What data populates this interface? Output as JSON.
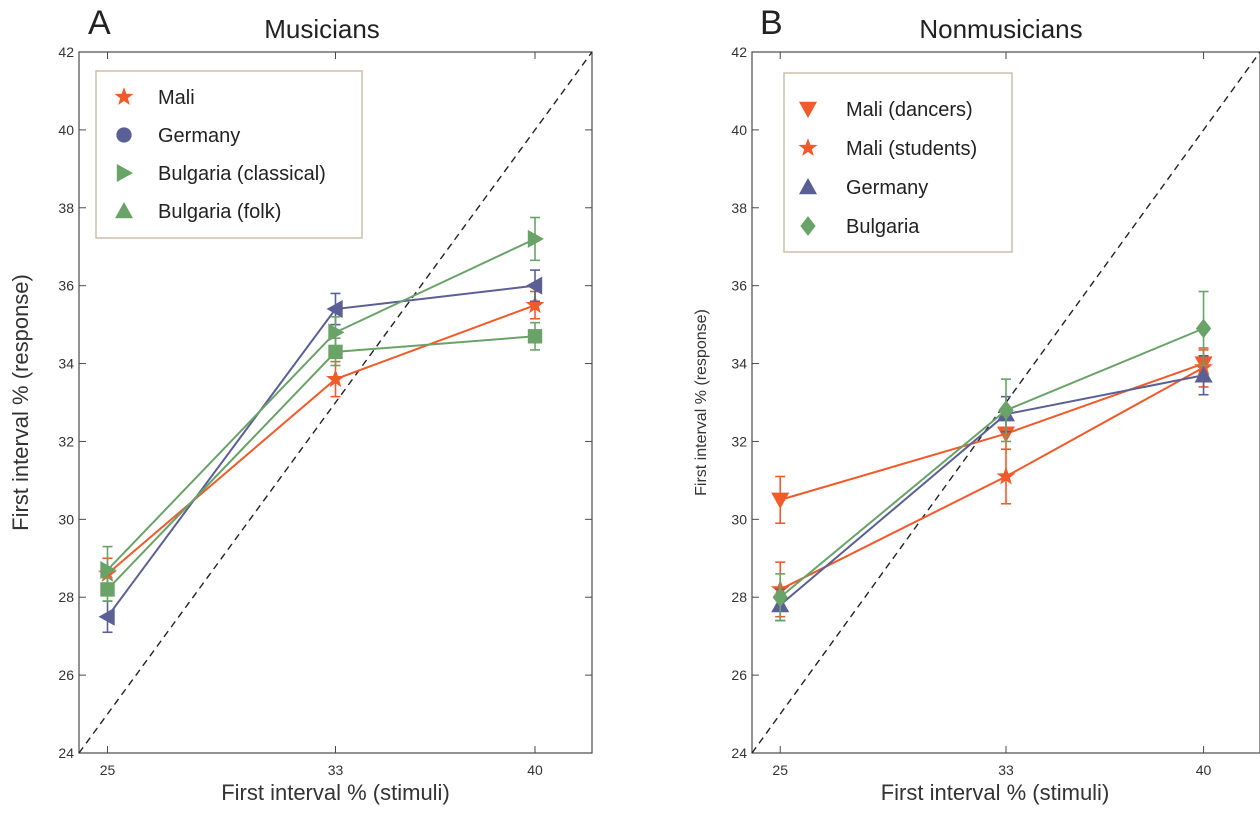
{
  "chart_data": [
    {
      "type": "line",
      "panel_letter": "A",
      "title": "Musicians",
      "xlabel": "First interval % (stimuli)",
      "ylabel": "First interval % (response)",
      "x_ticks": [
        25,
        33,
        40
      ],
      "y_ticks": [
        24,
        26,
        28,
        30,
        32,
        34,
        36,
        38,
        40,
        42
      ],
      "xlim": [
        24,
        42
      ],
      "ylim": [
        24,
        42
      ],
      "reference_line": "identity (dashed)",
      "legend_position": "top-left",
      "x": [
        25,
        33,
        40
      ],
      "series": [
        {
          "name": "Mali",
          "marker": "star",
          "color": "#f15a2b",
          "values": [
            28.6,
            33.6,
            35.5
          ],
          "errors": [
            0.4,
            0.45,
            0.35
          ]
        },
        {
          "name": "Germany",
          "marker": "circle",
          "marker_as_plotted": "left-triangle",
          "color": "#5a5f95",
          "values": [
            27.5,
            35.4,
            36.0
          ],
          "errors": [
            0.4,
            0.4,
            0.4
          ]
        },
        {
          "name": "Bulgaria (classical)",
          "marker": "right-triangle",
          "color": "#6aa368",
          "values": [
            28.7,
            34.8,
            37.2
          ],
          "errors": [
            0.6,
            0.4,
            0.55
          ]
        },
        {
          "name": "Bulgaria (folk)",
          "marker": "up-triangle",
          "marker_as_plotted": "square",
          "color": "#6aa368",
          "values": [
            28.2,
            34.3,
            34.7
          ],
          "errors": [
            0.3,
            0.35,
            0.35
          ]
        }
      ]
    },
    {
      "type": "line",
      "panel_letter": "B",
      "title": "Nonmusicians",
      "xlabel": "First interval % (stimuli)",
      "ylabel": "First interval % (response)",
      "x_ticks": [
        25,
        33,
        40
      ],
      "y_ticks": [
        24,
        26,
        28,
        30,
        32,
        34,
        36,
        38,
        40,
        42
      ],
      "xlim": [
        24,
        42
      ],
      "ylim": [
        24,
        42
      ],
      "reference_line": "identity (dashed)",
      "legend_position": "top-left",
      "x": [
        25,
        33,
        40
      ],
      "series": [
        {
          "name": "Mali (dancers)",
          "marker": "down-triangle",
          "color": "#f15a2b",
          "values": [
            30.5,
            32.2,
            34.0
          ],
          "errors": [
            0.6,
            0.4,
            0.35
          ]
        },
        {
          "name": "Mali (students)",
          "marker": "star",
          "color": "#f15a2b",
          "values": [
            28.2,
            31.1,
            33.9
          ],
          "errors": [
            0.7,
            0.7,
            0.5
          ]
        },
        {
          "name": "Germany",
          "marker": "up-triangle",
          "color": "#5a5f95",
          "values": [
            27.8,
            32.7,
            33.7
          ],
          "errors": [
            0.4,
            0.45,
            0.5
          ]
        },
        {
          "name": "Bulgaria",
          "marker": "diamond",
          "color": "#6aa368",
          "values": [
            28.0,
            32.8,
            34.9
          ],
          "errors": [
            0.6,
            0.8,
            0.95
          ]
        }
      ]
    }
  ]
}
